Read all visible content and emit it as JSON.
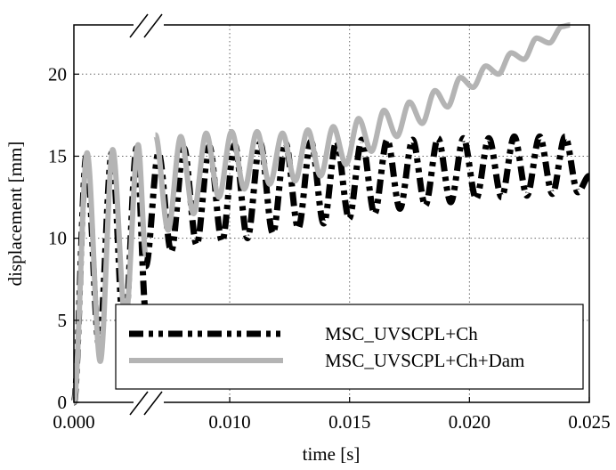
{
  "chart_data": {
    "type": "line",
    "xlabel": "time [s]",
    "ylabel": "displacement [mm]",
    "xlim": [
      0,
      0.025
    ],
    "xbreak": [
      0.003,
      0.0065
    ],
    "ylim": [
      0,
      23
    ],
    "xticks": [
      {
        "value": 0,
        "label": "0.000"
      },
      {
        "value": 0.01,
        "label": "0.010"
      },
      {
        "value": 0.015,
        "label": "0.015"
      },
      {
        "value": 0.02,
        "label": "0.020"
      },
      {
        "value": 0.025,
        "label": "0.025"
      }
    ],
    "yticks": [
      0,
      5,
      10,
      15,
      20
    ],
    "grid": true,
    "legend": "lower right",
    "series": [
      {
        "name": "MSC_UVSCPL+Ch",
        "color": "#000000",
        "style": "dashdotdot",
        "x": [
          0,
          0.00052,
          0.00105,
          0.00158,
          0.0021,
          0.00262,
          0.003,
          null,
          0.0065,
          0.00703,
          0.00756,
          0.00809,
          0.00862,
          0.00915,
          0.00968,
          0.01021,
          0.01074,
          0.01127,
          0.0118,
          0.01233,
          0.01286,
          0.01339,
          0.01392,
          0.01445,
          0.01498,
          0.01551,
          0.01604,
          0.01657,
          0.0171,
          0.01763,
          0.01816,
          0.01869,
          0.01922,
          0.01975,
          0.02028,
          0.02081,
          0.02134,
          0.02187,
          0.0224,
          0.02293,
          0.02346,
          0.02399,
          0.02452,
          0.025
        ],
        "values": [
          0,
          15.0,
          3.5,
          15.2,
          4.0,
          15.5,
          5.5,
          null,
          8.3,
          15.2,
          9.2,
          15.5,
          9.6,
          15.6,
          9.8,
          15.7,
          10.0,
          15.8,
          10.3,
          15.8,
          10.6,
          15.9,
          10.9,
          15.9,
          11.2,
          16.0,
          11.5,
          16.0,
          11.8,
          16.0,
          12.0,
          16.1,
          12.2,
          16.1,
          12.4,
          16.1,
          12.5,
          16.2,
          12.6,
          16.2,
          12.7,
          16.2,
          12.8,
          13.8
        ]
      },
      {
        "name": "MSC_UVSCPL+Ch+Dam",
        "color": "#b4b4b4",
        "style": "solid",
        "x": [
          0,
          0.00055,
          0.0011,
          0.00162,
          0.00215,
          0.00268,
          0.003,
          null,
          0.0069,
          0.00743,
          0.00796,
          0.00849,
          0.00902,
          0.00955,
          0.01008,
          0.01061,
          0.01114,
          0.01167,
          0.0122,
          0.01273,
          0.01326,
          0.01379,
          0.01432,
          0.01485,
          0.01538,
          0.01591,
          0.01644,
          0.01697,
          0.0175,
          0.01803,
          0.01856,
          0.01909,
          0.01962,
          0.02015,
          0.02068,
          0.02121,
          0.02174,
          0.02227,
          0.0228,
          0.02333,
          0.02386,
          0.0242
        ],
        "values": [
          0,
          15.2,
          2.5,
          15.4,
          5.0,
          15.7,
          9.0,
          null,
          16.3,
          10.5,
          16.2,
          11.5,
          16.4,
          12.5,
          16.5,
          13.0,
          16.5,
          13.3,
          16.4,
          13.5,
          16.6,
          13.8,
          16.8,
          14.5,
          17.3,
          15.3,
          17.8,
          16.2,
          18.3,
          17.0,
          19.0,
          18.0,
          19.8,
          19.2,
          20.5,
          20.0,
          21.3,
          20.9,
          22.2,
          21.9,
          22.9,
          23.0
        ]
      }
    ]
  }
}
